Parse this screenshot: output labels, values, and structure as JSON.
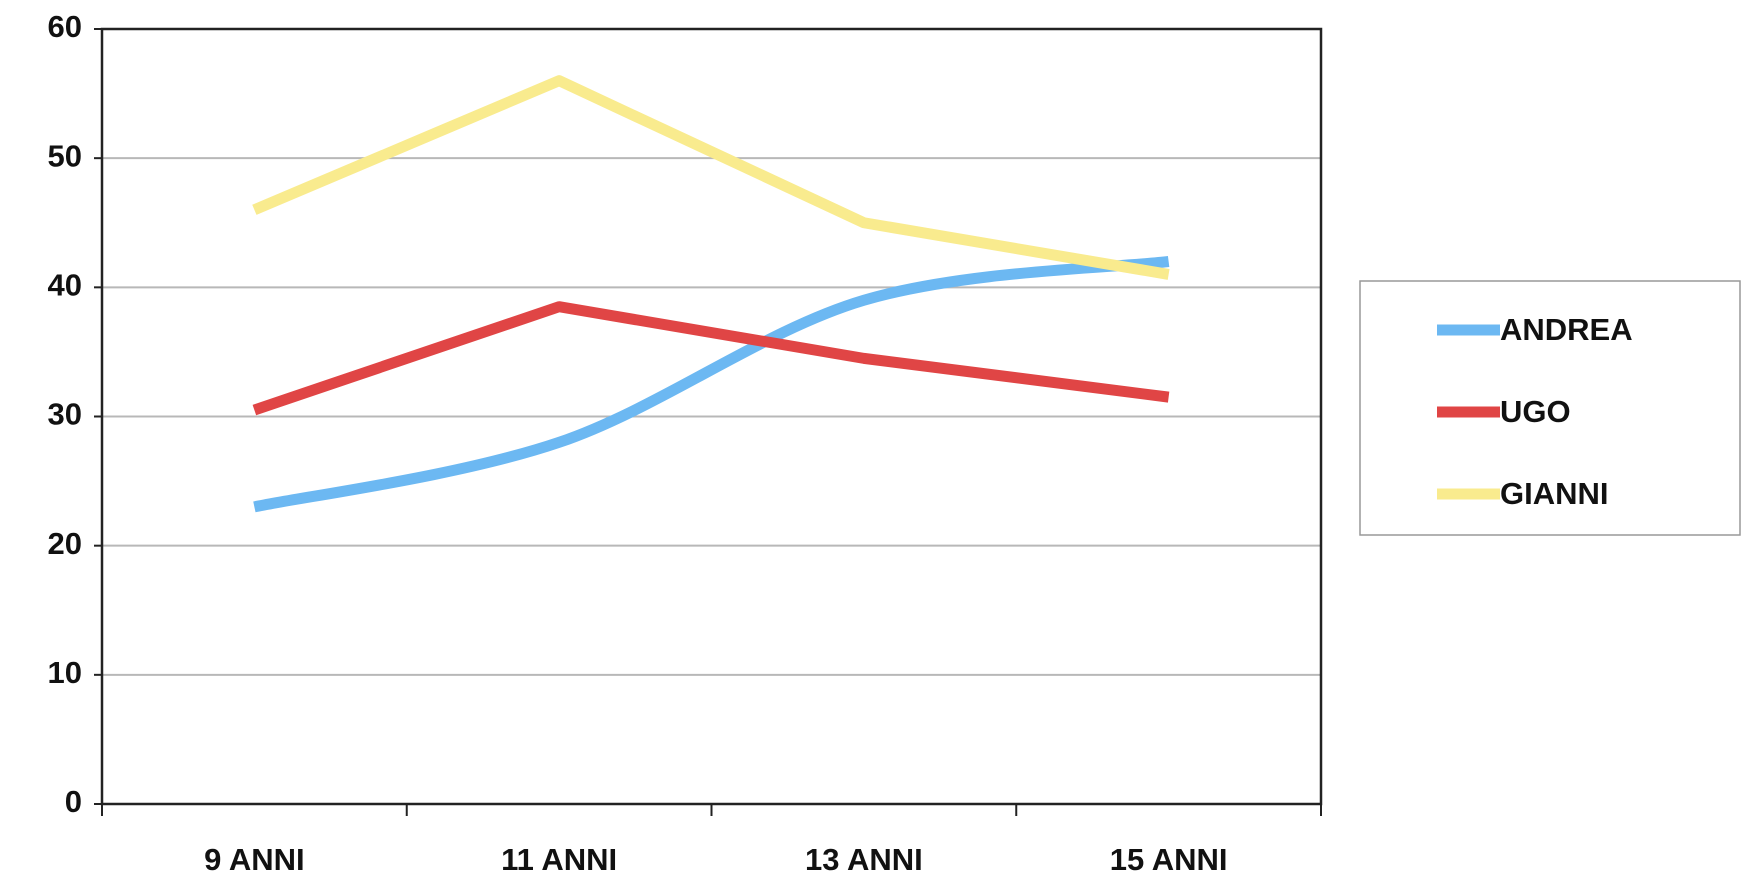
{
  "chart_data": {
    "type": "line",
    "categories": [
      "9 ANNI",
      "11 ANNI",
      "13 ANNI",
      "15 ANNI"
    ],
    "series": [
      {
        "name": "ANDREA",
        "color": "#6cb8f2",
        "smooth": true,
        "values": [
          23,
          28,
          39,
          42
        ]
      },
      {
        "name": "UGO",
        "color": "#e04545",
        "smooth": false,
        "values": [
          30.5,
          38.5,
          34.5,
          31.5
        ]
      },
      {
        "name": "GIANNI",
        "color": "#f9eb8e",
        "smooth": false,
        "values": [
          46,
          56,
          45,
          41
        ]
      }
    ],
    "ylim": [
      0,
      60
    ],
    "yticks": [
      0,
      10,
      20,
      30,
      40,
      50,
      60
    ],
    "grid": true,
    "legend": "right"
  }
}
